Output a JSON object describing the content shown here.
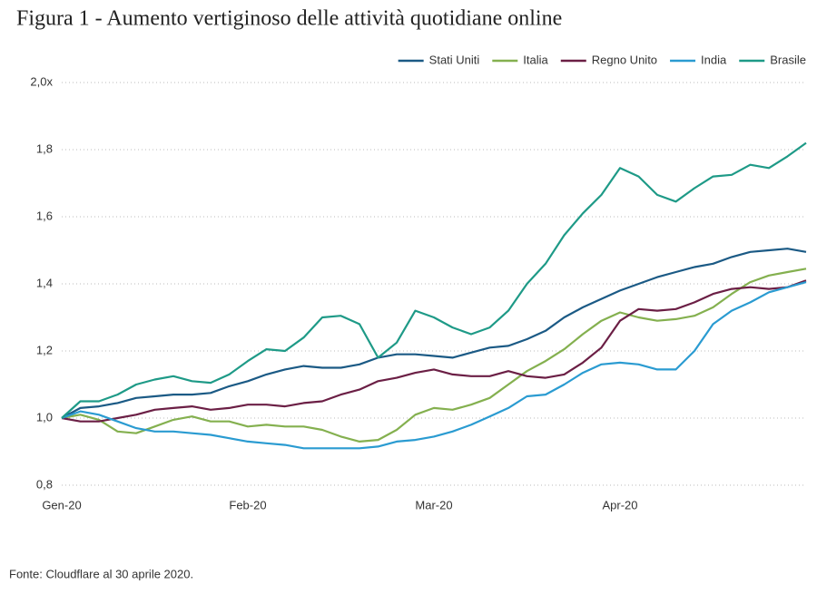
{
  "chart_data": {
    "type": "line",
    "title": "Figura 1 - Aumento vertiginoso delle attività quotidiane online",
    "source": "Fonte: Cloudflare al 30 aprile 2020.",
    "categories": [
      "Gen-20",
      null,
      null,
      null,
      null,
      null,
      null,
      null,
      null,
      null,
      "Feb-20",
      null,
      null,
      null,
      null,
      null,
      null,
      null,
      null,
      null,
      "Mar-20",
      null,
      null,
      null,
      null,
      null,
      null,
      null,
      null,
      null,
      "Apr-20",
      null,
      null,
      null,
      null,
      null,
      null,
      null,
      null,
      null,
      null
    ],
    "ylim": [
      0.8,
      2.0
    ],
    "yticks": [
      {
        "value": 0.8,
        "label": "0,8"
      },
      {
        "value": 1.0,
        "label": "1,0"
      },
      {
        "value": 1.2,
        "label": "1,2"
      },
      {
        "value": 1.4,
        "label": "1,4"
      },
      {
        "value": 1.6,
        "label": "1,6"
      },
      {
        "value": 1.8,
        "label": "1,8"
      },
      {
        "value": 2.0,
        "label": "2,0x"
      }
    ],
    "grid": true,
    "legend": "top-right",
    "series": [
      {
        "name": "Stati Uniti",
        "color": "#1b5a85",
        "values": [
          1.0,
          1.03,
          1.035,
          1.045,
          1.06,
          1.065,
          1.07,
          1.07,
          1.075,
          1.095,
          1.11,
          1.13,
          1.145,
          1.155,
          1.15,
          1.15,
          1.16,
          1.18,
          1.19,
          1.19,
          1.185,
          1.18,
          1.195,
          1.21,
          1.215,
          1.235,
          1.26,
          1.3,
          1.33,
          1.355,
          1.38,
          1.4,
          1.42,
          1.435,
          1.45,
          1.46,
          1.48,
          1.495,
          1.5,
          1.505,
          1.495
        ]
      },
      {
        "name": "Italia",
        "color": "#84b04f",
        "values": [
          1.0,
          1.01,
          0.995,
          0.96,
          0.955,
          0.975,
          0.995,
          1.005,
          0.99,
          0.99,
          0.975,
          0.98,
          0.975,
          0.975,
          0.965,
          0.945,
          0.93,
          0.935,
          0.965,
          1.01,
          1.03,
          1.025,
          1.04,
          1.06,
          1.1,
          1.14,
          1.17,
          1.205,
          1.25,
          1.29,
          1.315,
          1.3,
          1.29,
          1.295,
          1.305,
          1.33,
          1.37,
          1.405,
          1.425,
          1.435,
          1.445
        ]
      },
      {
        "name": "Regno Unito",
        "color": "#6b1f45",
        "values": [
          1.0,
          0.99,
          0.99,
          1.0,
          1.01,
          1.025,
          1.03,
          1.035,
          1.025,
          1.03,
          1.04,
          1.04,
          1.035,
          1.045,
          1.05,
          1.07,
          1.085,
          1.11,
          1.12,
          1.135,
          1.145,
          1.13,
          1.125,
          1.125,
          1.14,
          1.125,
          1.12,
          1.13,
          1.165,
          1.21,
          1.29,
          1.325,
          1.32,
          1.325,
          1.345,
          1.37,
          1.385,
          1.39,
          1.385,
          1.39,
          1.41
        ]
      },
      {
        "name": "India",
        "color": "#2a9bd1",
        "values": [
          1.0,
          1.02,
          1.01,
          0.99,
          0.97,
          0.96,
          0.96,
          0.955,
          0.95,
          0.94,
          0.93,
          0.925,
          0.92,
          0.91,
          0.91,
          0.91,
          0.91,
          0.915,
          0.93,
          0.935,
          0.945,
          0.96,
          0.98,
          1.005,
          1.03,
          1.065,
          1.07,
          1.1,
          1.135,
          1.16,
          1.165,
          1.16,
          1.145,
          1.145,
          1.2,
          1.28,
          1.32,
          1.345,
          1.375,
          1.39,
          1.405
        ]
      },
      {
        "name": "Brasile",
        "color": "#1e9a87",
        "values": [
          1.0,
          1.05,
          1.05,
          1.07,
          1.1,
          1.115,
          1.125,
          1.11,
          1.105,
          1.13,
          1.17,
          1.205,
          1.2,
          1.24,
          1.3,
          1.305,
          1.28,
          1.18,
          1.225,
          1.32,
          1.3,
          1.27,
          1.25,
          1.27,
          1.32,
          1.4,
          1.46,
          1.545,
          1.61,
          1.665,
          1.745,
          1.72,
          1.665,
          1.645,
          1.685,
          1.72,
          1.725,
          1.755,
          1.745,
          1.78,
          1.82
        ]
      }
    ]
  }
}
